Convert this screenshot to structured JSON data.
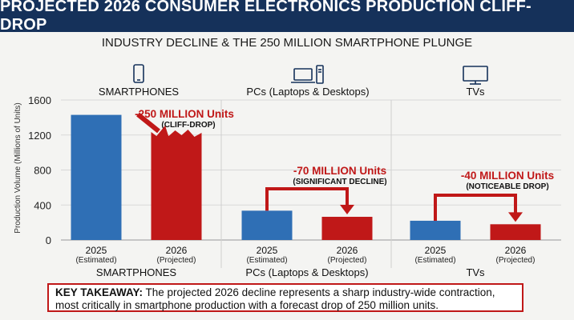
{
  "header": {
    "title": "PROJECTED 2026 CONSUMER ELECTRONICS PRODUCTION CLIFF-DROP",
    "subtitle": "INDUSTRY DECLINE & THE 250 MILLION SMARTPHONE PLUNGE"
  },
  "chart_data": {
    "type": "bar",
    "ylabel": "Production Volume (Millions of Units)",
    "ylim": [
      0,
      1600
    ],
    "yticks": [
      0,
      400,
      800,
      1200,
      1600
    ],
    "grid": true,
    "groups": [
      {
        "name": "SMARTPHONES",
        "header": "SMARTPHONES",
        "icon": "smartphone-icon",
        "bars": [
          {
            "year": "2025",
            "note": "(Estimated)",
            "value": 1430,
            "color": "#2f6fb5"
          },
          {
            "year": "2026",
            "note": "(Projected)",
            "value": 1180,
            "color": "#c01818"
          }
        ],
        "annotation": {
          "line1": "-250 MILLION Units",
          "line2": "(CLIFF-DROP)"
        }
      },
      {
        "name": "PCs (Laptops & Desktops)",
        "header": "PCs (Laptops & Desktops)",
        "icon": "laptop-desktop-icon",
        "bars": [
          {
            "year": "2025",
            "note": "(Estimated)",
            "value": 335,
            "color": "#2f6fb5"
          },
          {
            "year": "2026",
            "note": "(Projected)",
            "value": 265,
            "color": "#c01818"
          }
        ],
        "annotation": {
          "line1": "-70 MILLION Units",
          "line2": "(SIGNIFICANT DECLINE)"
        }
      },
      {
        "name": "TVs",
        "header": "TVs",
        "icon": "tv-icon",
        "bars": [
          {
            "year": "2025",
            "note": "(Estimated)",
            "value": 220,
            "color": "#2f6fb5"
          },
          {
            "year": "2026",
            "note": "(Projected)",
            "value": 180,
            "color": "#c01818"
          }
        ],
        "annotation": {
          "line1": "-40 MILLION Units",
          "line2": "(NOTICEABLE DROP)"
        }
      }
    ]
  },
  "takeaway": {
    "label": "KEY TAKEAWAY:",
    "text": " The projected 2026 decline represents a sharp industry-wide contraction, most critically in smartphone production with a forecast drop of 250 million units."
  },
  "colors": {
    "title_bg": "#15315a",
    "bar_2025": "#2f6fb5",
    "bar_2026": "#c01818",
    "annotation": "#c01818"
  }
}
